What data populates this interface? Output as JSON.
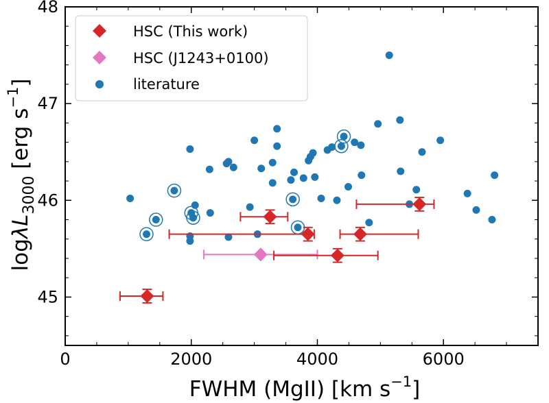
{
  "chart_data": {
    "type": "scatter",
    "title": "",
    "xlabel": "FWHM (MgII) [km s",
    "xlabel_suffix": "]",
    "ylabel_prefix": "log",
    "ylabel_suffix": " [erg s",
    "ylabel_tail": "]",
    "ylabel_symbol": "λL",
    "ylabel_subscript": "3000",
    "superscript": "−1",
    "xlim": [
      0,
      7500
    ],
    "ylim": [
      44.5,
      48
    ],
    "xticks": [
      0,
      2000,
      4000,
      6000
    ],
    "xtick_labels": [
      "0",
      "2000",
      "4000",
      "6000"
    ],
    "yticks": [
      45,
      46,
      47,
      48
    ],
    "ytick_labels": [
      "45",
      "46",
      "47",
      "48"
    ],
    "legend_position": "top-left",
    "colors": {
      "red": "#d62728",
      "pink": "#e377c2",
      "blue": "#1f77b4"
    },
    "series": [
      {
        "name": "HSC (This work)",
        "marker": "diamond",
        "color": "#d62728",
        "points": [
          {
            "x": 1300,
            "y": 45.01,
            "xerr": [
              430,
              250
            ],
            "yerr": 0.07
          },
          {
            "x": 3250,
            "y": 45.83,
            "xerr": [
              470,
              280
            ],
            "yerr": 0.07
          },
          {
            "x": 3850,
            "y": 45.65,
            "xerr": [
              2200,
              100
            ],
            "yerr": 0.07
          },
          {
            "x": 4680,
            "y": 45.65,
            "xerr": [
              320,
              920
            ],
            "yerr": 0.07
          },
          {
            "x": 4320,
            "y": 45.43,
            "xerr": [
              1010,
              640
            ],
            "yerr": 0.07
          },
          {
            "x": 5620,
            "y": 45.96,
            "xerr": [
              1000,
              230
            ],
            "yerr": 0.07
          }
        ]
      },
      {
        "name": "HSC (J1243+0100)",
        "marker": "diamond",
        "color": "#e377c2",
        "points": [
          {
            "x": 3100,
            "y": 45.44,
            "xerr": [
              900,
              900
            ],
            "yerr": 0.0
          }
        ]
      },
      {
        "name": "literature",
        "marker": "circle",
        "color": "#1f77b4",
        "points": [
          {
            "x": 1030,
            "y": 46.02
          },
          {
            "x": 1290,
            "y": 45.65,
            "ring": true
          },
          {
            "x": 1440,
            "y": 45.8,
            "ring": true
          },
          {
            "x": 1730,
            "y": 46.1,
            "ring": true
          },
          {
            "x": 1980,
            "y": 46.53
          },
          {
            "x": 1980,
            "y": 45.63
          },
          {
            "x": 1980,
            "y": 45.58
          },
          {
            "x": 2000,
            "y": 45.87,
            "ring": true
          },
          {
            "x": 2030,
            "y": 45.82,
            "ring": true
          },
          {
            "x": 2060,
            "y": 45.95
          },
          {
            "x": 2290,
            "y": 46.32
          },
          {
            "x": 2300,
            "y": 45.87
          },
          {
            "x": 2560,
            "y": 46.38
          },
          {
            "x": 2590,
            "y": 46.4
          },
          {
            "x": 2590,
            "y": 45.62
          },
          {
            "x": 2670,
            "y": 46.34
          },
          {
            "x": 2930,
            "y": 45.93
          },
          {
            "x": 3000,
            "y": 46.62
          },
          {
            "x": 3050,
            "y": 45.65
          },
          {
            "x": 3110,
            "y": 46.33
          },
          {
            "x": 3290,
            "y": 46.39
          },
          {
            "x": 3290,
            "y": 46.18
          },
          {
            "x": 3360,
            "y": 46.74
          },
          {
            "x": 3360,
            "y": 46.56
          },
          {
            "x": 3580,
            "y": 46.21
          },
          {
            "x": 3610,
            "y": 46.01,
            "ring": true
          },
          {
            "x": 3630,
            "y": 46.29
          },
          {
            "x": 3690,
            "y": 45.72,
            "ring": true
          },
          {
            "x": 3780,
            "y": 46.23
          },
          {
            "x": 3860,
            "y": 46.41
          },
          {
            "x": 3890,
            "y": 46.45
          },
          {
            "x": 3930,
            "y": 46.49
          },
          {
            "x": 3960,
            "y": 46.24
          },
          {
            "x": 4060,
            "y": 46.02
          },
          {
            "x": 4160,
            "y": 46.52
          },
          {
            "x": 4230,
            "y": 46.55
          },
          {
            "x": 4310,
            "y": 46.0
          },
          {
            "x": 4380,
            "y": 46.56,
            "ring": true
          },
          {
            "x": 4420,
            "y": 46.66,
            "ring": true
          },
          {
            "x": 4490,
            "y": 46.14
          },
          {
            "x": 4590,
            "y": 46.6
          },
          {
            "x": 4690,
            "y": 46.57
          },
          {
            "x": 4700,
            "y": 46.26
          },
          {
            "x": 4820,
            "y": 45.77
          },
          {
            "x": 4960,
            "y": 46.79
          },
          {
            "x": 5140,
            "y": 47.5
          },
          {
            "x": 5310,
            "y": 46.83
          },
          {
            "x": 5320,
            "y": 46.3
          },
          {
            "x": 5460,
            "y": 45.96
          },
          {
            "x": 5570,
            "y": 46.11
          },
          {
            "x": 5660,
            "y": 46.5
          },
          {
            "x": 5950,
            "y": 46.62
          },
          {
            "x": 6380,
            "y": 46.07
          },
          {
            "x": 6520,
            "y": 45.9
          },
          {
            "x": 6770,
            "y": 45.8
          },
          {
            "x": 6810,
            "y": 46.26
          }
        ]
      }
    ]
  }
}
